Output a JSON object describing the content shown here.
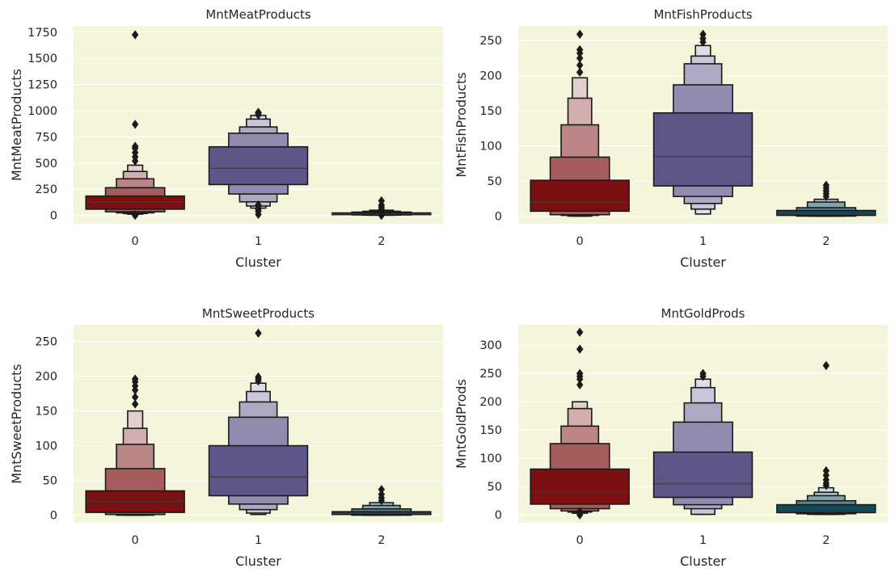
{
  "chart_data": [
    {
      "type": "boxenplot",
      "title": "MntMeatProducts",
      "xlabel": "Cluster",
      "ylabel": "MntMeatProducts",
      "categories": [
        "0",
        "1",
        "2"
      ],
      "ylim": [
        -80,
        1810
      ],
      "yticks": [
        0,
        250,
        500,
        750,
        1000,
        1250,
        1500,
        1750
      ],
      "grid": true,
      "boxes": [
        {
          "cluster": "0",
          "median": 130,
          "levels": [
            [
              60,
              185
            ],
            [
              35,
              265
            ],
            [
              25,
              350
            ],
            [
              18,
              420
            ],
            [
              12,
              480
            ]
          ],
          "outliers": [
            0,
            5,
            520,
            560,
            600,
            640,
            660,
            870,
            1725
          ]
        },
        {
          "cluster": "1",
          "median": 450,
          "levels": [
            [
              295,
              655
            ],
            [
              205,
              785
            ],
            [
              130,
              845
            ],
            [
              90,
              920
            ],
            [
              70,
              955
            ]
          ],
          "outliers": [
            10,
            40,
            60,
            90,
            100,
            960,
            975,
            985
          ]
        },
        {
          "cluster": "2",
          "median": 15,
          "levels": [
            [
              8,
              24
            ],
            [
              5,
              32
            ],
            [
              3,
              40
            ],
            [
              2,
              50
            ]
          ],
          "outliers": [
            0,
            60,
            80,
            100,
            140
          ]
        }
      ]
    },
    {
      "type": "boxenplot",
      "title": "MntFishProducts",
      "xlabel": "Cluster",
      "ylabel": "MntFishProducts",
      "categories": [
        "0",
        "1",
        "2"
      ],
      "ylim": [
        -11,
        271
      ],
      "yticks": [
        0,
        50,
        100,
        150,
        200,
        250
      ],
      "grid": true,
      "boxes": [
        {
          "cluster": "0",
          "median": 20,
          "levels": [
            [
              7,
              51
            ],
            [
              2,
              84
            ],
            [
              1,
              130
            ],
            [
              0,
              168
            ],
            [
              0,
              197
            ]
          ],
          "outliers": [
            205,
            215,
            225,
            232,
            237,
            259
          ]
        },
        {
          "cluster": "1",
          "median": 85,
          "levels": [
            [
              43,
              147
            ],
            [
              28,
              187
            ],
            [
              18,
              217
            ],
            [
              10,
              228
            ],
            [
              3,
              243
            ]
          ],
          "outliers": [
            248,
            253,
            259
          ]
        },
        {
          "cluster": "2",
          "median": 3,
          "levels": [
            [
              1,
              8
            ],
            [
              0,
              12
            ],
            [
              0,
              20
            ],
            [
              0,
              24
            ]
          ],
          "outliers": [
            28,
            32,
            36,
            40,
            44
          ]
        }
      ]
    },
    {
      "type": "boxenplot",
      "title": "MntSweetProducts",
      "xlabel": "Cluster",
      "ylabel": "MntSweetProducts",
      "categories": [
        "0",
        "1",
        "2"
      ],
      "ylim": [
        -11,
        274
      ],
      "yticks": [
        0,
        50,
        100,
        150,
        200,
        250
      ],
      "grid": true,
      "boxes": [
        {
          "cluster": "0",
          "median": 20,
          "levels": [
            [
              4,
              35
            ],
            [
              1,
              67
            ],
            [
              0,
              102
            ],
            [
              0,
              125
            ],
            [
              0,
              150
            ]
          ],
          "outliers": [
            160,
            170,
            180,
            186,
            192,
            196
          ]
        },
        {
          "cluster": "1",
          "median": 55,
          "levels": [
            [
              28,
              100
            ],
            [
              16,
              141
            ],
            [
              8,
              163
            ],
            [
              3,
              178
            ],
            [
              1,
              190
            ]
          ],
          "outliers": [
            193,
            196,
            199,
            262
          ]
        },
        {
          "cluster": "2",
          "median": 3,
          "levels": [
            [
              1,
              5
            ],
            [
              0,
              9
            ],
            [
              0,
              14
            ],
            [
              0,
              18
            ]
          ],
          "outliers": [
            21,
            25,
            30,
            37
          ]
        }
      ]
    },
    {
      "type": "boxenplot",
      "title": "MntGoldProds",
      "xlabel": "Cluster",
      "ylabel": "MntGoldProds",
      "categories": [
        "0",
        "1",
        "2"
      ],
      "ylim": [
        -14,
        336
      ],
      "yticks": [
        0,
        50,
        100,
        150,
        200,
        250,
        300
      ],
      "grid": true,
      "boxes": [
        {
          "cluster": "0",
          "median": 40,
          "levels": [
            [
              19,
              81
            ],
            [
              11,
              126
            ],
            [
              7,
              157
            ],
            [
              5,
              188
            ],
            [
              3,
              200
            ]
          ],
          "outliers": [
            0,
            3,
            6,
            230,
            240,
            245,
            250,
            293,
            323
          ]
        },
        {
          "cluster": "1",
          "median": 55,
          "levels": [
            [
              31,
              111
            ],
            [
              18,
              164
            ],
            [
              11,
              198
            ],
            [
              1,
              225
            ],
            [
              1,
              240
            ]
          ],
          "outliers": [
            245,
            250
          ]
        },
        {
          "cluster": "2",
          "median": 6,
          "levels": [
            [
              4,
              18
            ],
            [
              2,
              25
            ],
            [
              1,
              34
            ],
            [
              1,
              40
            ],
            [
              1,
              48
            ]
          ],
          "outliers": [
            52,
            56,
            62,
            70,
            78,
            264
          ]
        }
      ]
    }
  ],
  "colors": {
    "plot_background": "#f5f5dc",
    "grid": "#ffffff",
    "edge": "#1a1a1a",
    "cluster_palette": [
      "#7a1010",
      "#5c5689",
      "#0c4a5c"
    ]
  }
}
